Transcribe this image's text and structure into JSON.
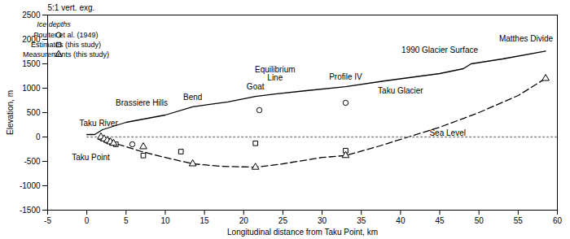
{
  "chart_data": {
    "type": "line",
    "x_label": "Longitudinal distance from Taku Point, km",
    "y_label": "Elevation, m",
    "xlim": [
      -5,
      60
    ],
    "xticks": [
      -5,
      0,
      5,
      10,
      15,
      20,
      25,
      30,
      35,
      40,
      45,
      50,
      55,
      60
    ],
    "ylim": [
      -1500,
      2500
    ],
    "yticks": [
      -1500,
      -1000,
      -500,
      0,
      500,
      1000,
      1500,
      2000,
      2500
    ],
    "grid": false,
    "legend": "upper left",
    "legend_title": "Ice depths",
    "series": [
      {
        "type": "line",
        "line_style": "solid",
        "color": "#000000",
        "x": [
          0,
          1,
          2,
          5,
          10,
          13.5,
          18,
          21.5,
          24,
          28,
          33,
          38,
          45,
          48,
          49,
          53,
          58.5
        ],
        "values": [
          50,
          50,
          150,
          300,
          450,
          620,
          720,
          830,
          880,
          950,
          1030,
          1150,
          1300,
          1400,
          1500,
          1600,
          1760
        ]
      },
      {
        "type": "line",
        "line_style": "dashed",
        "color": "#000000",
        "x": [
          1.5,
          2.5,
          4,
          7,
          10,
          13.5,
          17,
          21.5,
          25,
          30,
          33,
          37,
          41,
          45,
          50,
          55,
          58.5
        ],
        "values": [
          -50,
          -100,
          -150,
          -300,
          -420,
          -550,
          -600,
          -620,
          -550,
          -420,
          -380,
          -200,
          0,
          200,
          500,
          850,
          1200
        ]
      },
      {
        "type": "line",
        "line_style": "dotted",
        "color": "#888888",
        "x": [
          0,
          60
        ],
        "values": [
          0,
          0
        ]
      },
      {
        "type": "scatter",
        "name": "Poulter et al. (1949)",
        "marker": "circle",
        "color": "#000000",
        "x": [
          5.8,
          22,
          33
        ],
        "values": [
          -150,
          550,
          700
        ]
      },
      {
        "type": "scatter",
        "name": "Estimates (this study)",
        "marker": "square",
        "color": "#000000",
        "x": [
          2.7,
          3.2,
          3.7,
          7.2,
          12,
          21.5,
          33
        ],
        "values": [
          -80,
          -120,
          -150,
          -380,
          -300,
          -130,
          -280
        ]
      },
      {
        "type": "scatter",
        "name": "Measurements (this study)",
        "marker": "triangle",
        "color": "#000000",
        "x": [
          1.8,
          2.2,
          2.6,
          3,
          3.4,
          7.2,
          13.5,
          21.5,
          33,
          58.5
        ],
        "values": [
          0,
          -40,
          -70,
          -100,
          -130,
          -200,
          -550,
          -620,
          -380,
          1200
        ]
      }
    ],
    "annotations": [
      {
        "text": "5:1 vert. exg.",
        "x": -2,
        "y": 2650
      },
      {
        "text": "Taku River",
        "x": 1.5,
        "y": 280
      },
      {
        "text": "Taku Point",
        "x": 0.5,
        "y": -420
      },
      {
        "text": "Brassiere Hills",
        "x": 7,
        "y": 700
      },
      {
        "text": "Bend",
        "x": 13.5,
        "y": 820
      },
      {
        "text": "Goat",
        "x": 21.5,
        "y": 1030
      },
      {
        "text": "Equilibrium\nLine",
        "x": 24,
        "y": 1300
      },
      {
        "text": "Profile IV",
        "x": 33,
        "y": 1230
      },
      {
        "text": "1990 Glacier Surface",
        "x": 45,
        "y": 1780
      },
      {
        "text": "Matthes Divide",
        "x": 56,
        "y": 2020
      },
      {
        "text": "Taku Glacier",
        "x": 40,
        "y": 950
      },
      {
        "text": "Sea Level",
        "x": 46,
        "y": 80
      }
    ]
  }
}
